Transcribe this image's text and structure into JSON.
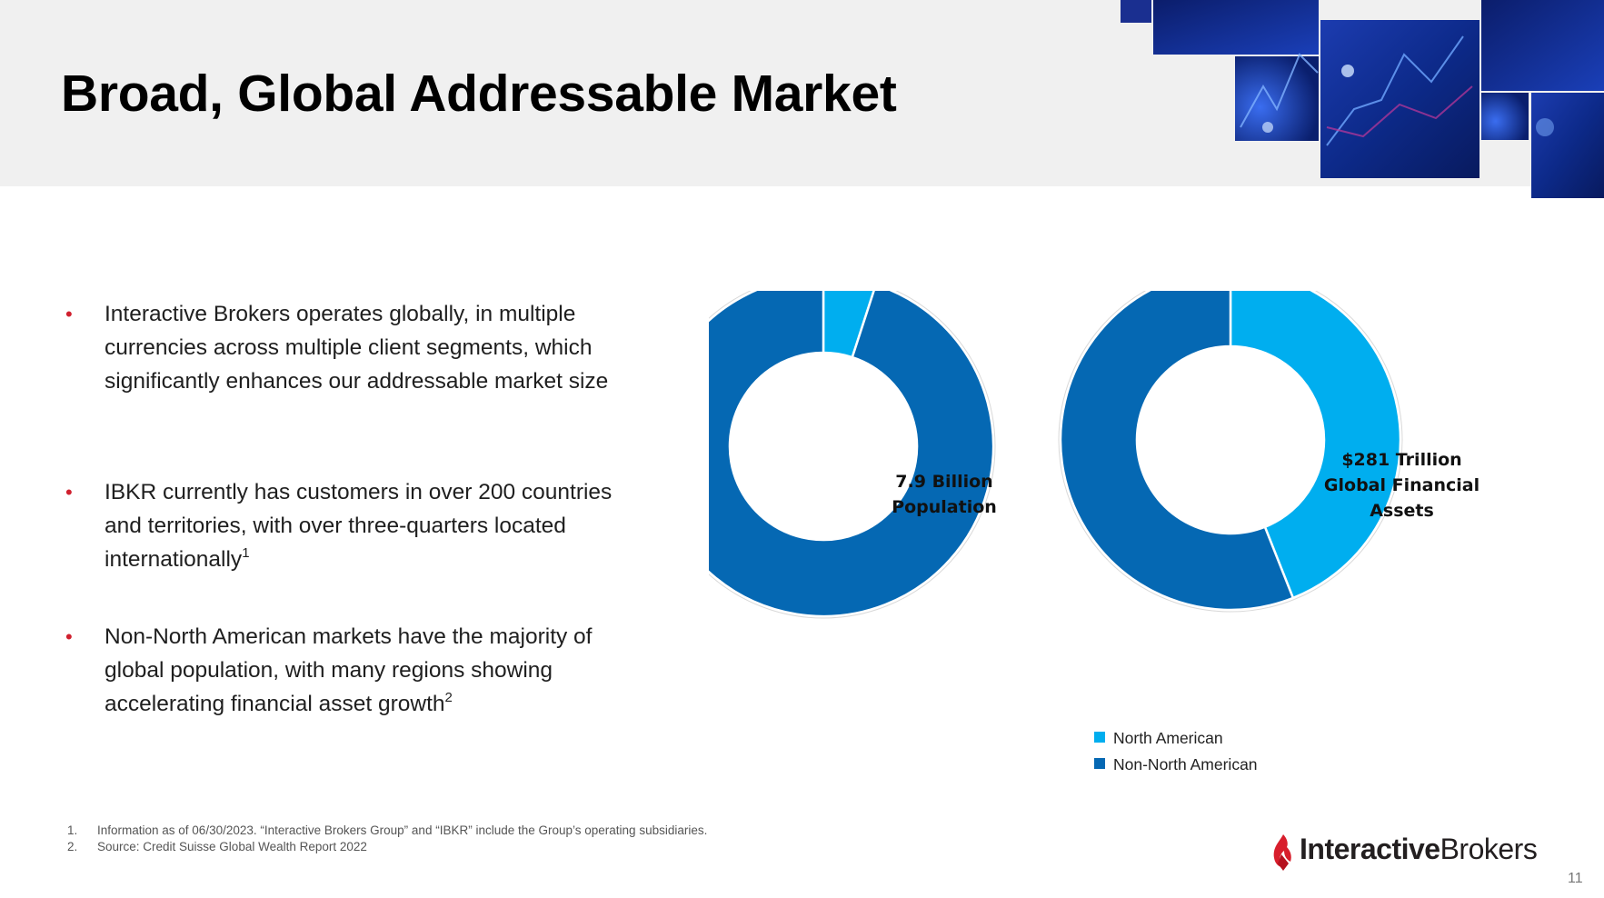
{
  "slide": {
    "title": "Broad, Global Addressable Market",
    "page_number": "11"
  },
  "bullets": [
    {
      "marker": "•",
      "text": "Interactive Brokers operates globally, in multiple currencies across multiple client segments, which significantly enhances our addressable market size",
      "superscript": ""
    },
    {
      "marker": "•",
      "text": "IBKR currently has customers in over 200 countries and territories, with over three-quarters located internationally",
      "superscript": "1"
    },
    {
      "marker": "•",
      "text": "Non-North American markets have the majority of global population, with many regions showing accelerating financial asset growth",
      "superscript": "2"
    }
  ],
  "charts": {
    "population_center_line1": "7.9 Billion",
    "population_center_line2": "Population",
    "assets_center_line1": "$281 Trillion",
    "assets_center_line2": "Global Financial",
    "assets_center_line3": "Assets"
  },
  "chart_data": [
    {
      "type": "pie",
      "subtype": "donut",
      "center_label": "7.9 Billion Population",
      "categories": [
        "North American",
        "Non-North American"
      ],
      "values": [
        5,
        95
      ],
      "colors": [
        "#00aeef",
        "#0568b3"
      ]
    },
    {
      "type": "pie",
      "subtype": "donut",
      "center_label": "$281 Trillion Global Financial Assets",
      "categories": [
        "North American",
        "Non-North American"
      ],
      "values": [
        44,
        56
      ],
      "colors": [
        "#00aeef",
        "#0568b3"
      ]
    }
  ],
  "legend": [
    {
      "label": "North American",
      "color": "#00aeef"
    },
    {
      "label": "Non-North American",
      "color": "#0568b3"
    }
  ],
  "footnotes": [
    {
      "num": "1.",
      "text": "Information as of 06/30/2023. “Interactive Brokers Group” and “IBKR” include the Group’s operating subsidiaries."
    },
    {
      "num": "2.",
      "text": "Source: Credit Suisse Global Wealth Report 2022"
    }
  ],
  "logo": {
    "text_bold": "Interactive",
    "text_regular": "Brokers"
  },
  "colors": {
    "north_american": "#00aeef",
    "non_north_american": "#0568b3",
    "bullet_red": "#d0202e",
    "header_gray": "#f0f0f0"
  }
}
